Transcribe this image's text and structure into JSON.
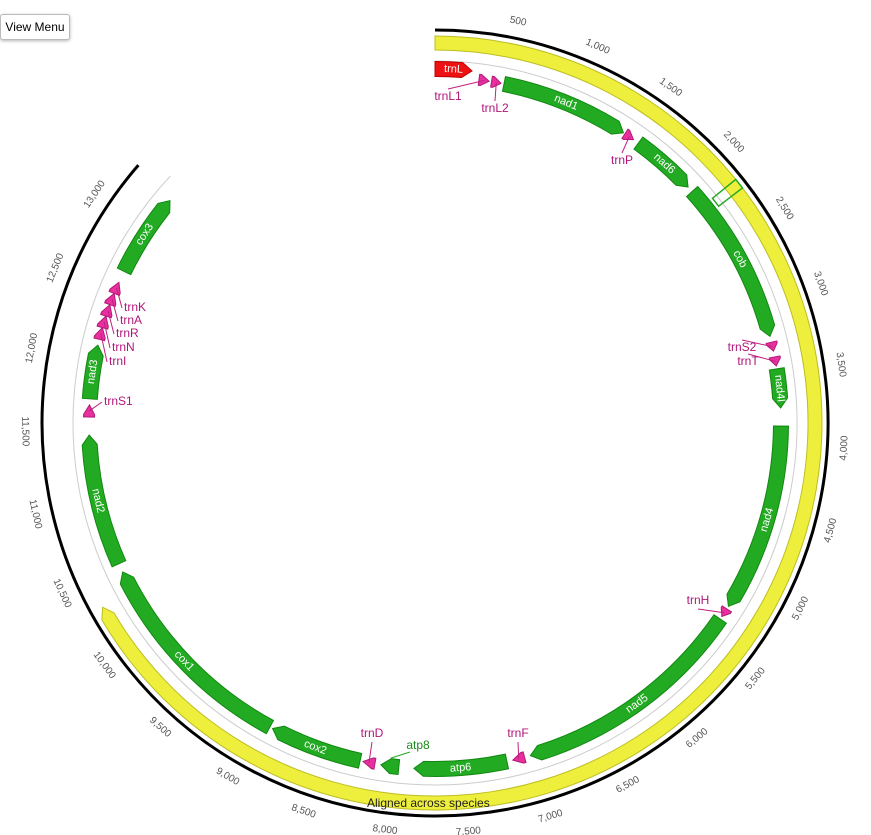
{
  "menu_button": "View Menu",
  "ticks": [
    "500",
    "1,000",
    "1,500",
    "2,000",
    "2,500",
    "3,000",
    "3,500",
    "4,000",
    "4,500",
    "5,000",
    "5,500",
    "6,000",
    "6,500",
    "7,000",
    "7,500",
    "8,000",
    "8,500",
    "9,000",
    "9,500",
    "10,000",
    "10,500",
    "11,000",
    "11,500",
    "12,000",
    "12,500",
    "13,000"
  ],
  "aligned_label": "Aligned across species",
  "features": [
    "trnL",
    "trnL1",
    "trnL2",
    "nad1",
    "trnP",
    "nad6",
    "cob",
    "trnS2",
    "trnT",
    "nad4l",
    "nad4",
    "trnH",
    "nad5",
    "trnF",
    "atp6",
    "atp8",
    "trnD",
    "cox2",
    "cox1",
    "nad2",
    "trnS1",
    "nad3",
    "trnI",
    "trnN",
    "trnR",
    "trnA",
    "trnK",
    "cox3"
  ]
}
